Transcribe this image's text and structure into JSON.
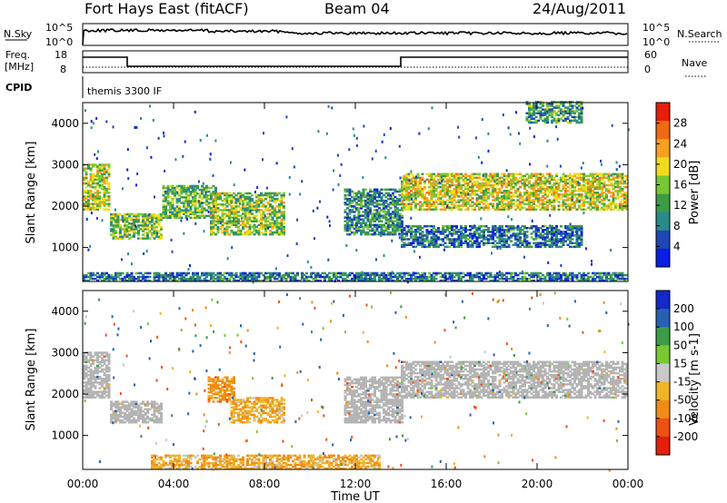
{
  "header": {
    "station": "Fort Hays East (fitACF)",
    "beam": "Beam 04",
    "date": "24/Aug/2011"
  },
  "panels": {
    "nsky": {
      "left_label": "N.Sky",
      "left_ticks": [
        "10^5",
        "10^0"
      ],
      "right_label": "N.Search",
      "right_ticks": [
        "10^5",
        "10^0"
      ]
    },
    "freq": {
      "left_label_top": "Freq.",
      "left_label_bottom": "[MHz]",
      "left_ticks": [
        "18",
        "8"
      ],
      "right_label": "Nave",
      "right_ticks": [
        "60",
        "0"
      ]
    },
    "cpid": {
      "label": "CPID",
      "mode_text": "themis 3300 IF"
    }
  },
  "colors": {
    "missing": "#ffffff",
    "ground_scatter": "#b4b4b4"
  },
  "chart_data": [
    {
      "type": "heatmap",
      "title": "",
      "xlabel": "",
      "ylabel": "Slant Range [km]",
      "x_ticks": [
        "00:00",
        "04:00",
        "08:00",
        "12:00",
        "16:00",
        "20:00",
        "00:00"
      ],
      "y_ticks": [
        1000,
        2000,
        3000,
        4000
      ],
      "xlim_hours": [
        0,
        24
      ],
      "ylim_km": [
        180,
        4500
      ],
      "colorbar": {
        "label": "Power [dB]",
        "ticks": [
          "4",
          "8",
          "12",
          "16",
          "20",
          "24",
          "28"
        ],
        "levels": [
          0,
          32
        ],
        "colors": [
          "#0a1ee6",
          "#1e46b4",
          "#2a8a8a",
          "#3c9b46",
          "#78c832",
          "#f0dc1e",
          "#f5a01e",
          "#f06a14",
          "#e61e0a"
        ]
      },
      "regions": [
        {
          "t0": 0.0,
          "t1": 1.2,
          "r0": 1900,
          "r1": 3000,
          "value": 18
        },
        {
          "t0": 1.2,
          "t1": 3.5,
          "r0": 1200,
          "r1": 1800,
          "value": 15
        },
        {
          "t0": 3.5,
          "t1": 5.8,
          "r0": 1700,
          "r1": 2500,
          "value": 14
        },
        {
          "t0": 5.6,
          "t1": 8.8,
          "r0": 1300,
          "r1": 2300,
          "value": 16
        },
        {
          "t0": 11.5,
          "t1": 14.0,
          "r0": 1300,
          "r1": 2400,
          "value": 10
        },
        {
          "t0": 14.0,
          "t1": 24.0,
          "r0": 1900,
          "r1": 2800,
          "value": 19
        },
        {
          "t0": 14.0,
          "t1": 22.0,
          "r0": 1000,
          "r1": 1500,
          "value": 8
        },
        {
          "t0": 19.5,
          "t1": 22.0,
          "r0": 4000,
          "r1": 4500,
          "value": 12
        },
        {
          "t0": 0.0,
          "t1": 24.0,
          "r0": 180,
          "r1": 400,
          "value": 8
        }
      ]
    },
    {
      "type": "heatmap",
      "title": "",
      "xlabel": "Time UT",
      "ylabel": "Slant Range [km]",
      "x_ticks": [
        "00:00",
        "04:00",
        "08:00",
        "12:00",
        "16:00",
        "20:00",
        "00:00"
      ],
      "y_ticks": [
        1000,
        2000,
        3000,
        4000
      ],
      "xlim_hours": [
        0,
        24
      ],
      "ylim_km": [
        180,
        4500
      ],
      "colorbar": {
        "label": "Velocity [m s-1]",
        "ticks": [
          "200",
          "100",
          "50",
          "15",
          "-15",
          "-50",
          "-100",
          "-200"
        ],
        "colors": [
          "#1428c8",
          "#2860b4",
          "#3c9b46",
          "#78c832",
          "#c8c8c8",
          "#f0b428",
          "#f08c14",
          "#f05014",
          "#e61e0a"
        ]
      },
      "regions": [
        {
          "t0": 0.0,
          "t1": 1.2,
          "r0": 1900,
          "r1": 3000,
          "value": 0,
          "ground_scatter": true
        },
        {
          "t0": 1.2,
          "t1": 3.5,
          "r0": 1300,
          "r1": 1800,
          "value": 0,
          "ground_scatter": true
        },
        {
          "t0": 5.5,
          "t1": 6.6,
          "r0": 1800,
          "r1": 2400,
          "value": -70
        },
        {
          "t0": 6.5,
          "t1": 8.8,
          "r0": 1300,
          "r1": 1900,
          "value": -40
        },
        {
          "t0": 11.5,
          "t1": 14.0,
          "r0": 1300,
          "r1": 2400,
          "value": 0,
          "ground_scatter": true
        },
        {
          "t0": 14.0,
          "t1": 24.0,
          "r0": 1900,
          "r1": 2800,
          "value": 0,
          "ground_scatter": true
        },
        {
          "t0": 3.0,
          "t1": 13.0,
          "r0": 180,
          "r1": 500,
          "value": -40
        }
      ]
    }
  ]
}
